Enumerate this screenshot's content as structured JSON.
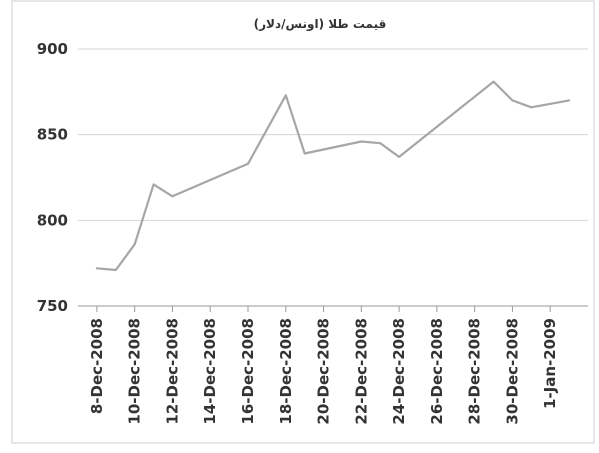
{
  "chart_data": {
    "type": "line",
    "title": "قیمت طلا (اونس/دلار)",
    "xlabel": "",
    "ylabel": "",
    "ylim": [
      750,
      900
    ],
    "yticks": [
      750,
      800,
      850,
      900
    ],
    "grid": "horizontal",
    "x_tick_labels": [
      "8-Dec-2008",
      "10-Dec-2008",
      "12-Dec-2008",
      "14-Dec-2008",
      "16-Dec-2008",
      "18-Dec-2008",
      "20-Dec-2008",
      "22-Dec-2008",
      "24-Dec-2008",
      "26-Dec-2008",
      "28-Dec-2008",
      "30-Dec-2008",
      "1-Jan-2009"
    ],
    "x_range": [
      "2008-12-07",
      "2009-01-03"
    ],
    "series": [
      {
        "color": "#a6a6a6",
        "points": [
          {
            "x": "2008-12-08",
            "y": 772
          },
          {
            "x": "2008-12-09",
            "y": 771
          },
          {
            "x": "2008-12-10",
            "y": 786
          },
          {
            "x": "2008-12-11",
            "y": 821
          },
          {
            "x": "2008-12-12",
            "y": 814
          },
          {
            "x": "2008-12-16",
            "y": 833
          },
          {
            "x": "2008-12-18",
            "y": 873
          },
          {
            "x": "2008-12-19",
            "y": 839
          },
          {
            "x": "2008-12-22",
            "y": 846
          },
          {
            "x": "2008-12-23",
            "y": 845
          },
          {
            "x": "2008-12-24",
            "y": 837
          },
          {
            "x": "2008-12-29",
            "y": 881
          },
          {
            "x": "2008-12-30",
            "y": 870
          },
          {
            "x": "2008-12-31",
            "y": 866
          },
          {
            "x": "2009-01-02",
            "y": 870
          }
        ]
      }
    ]
  }
}
